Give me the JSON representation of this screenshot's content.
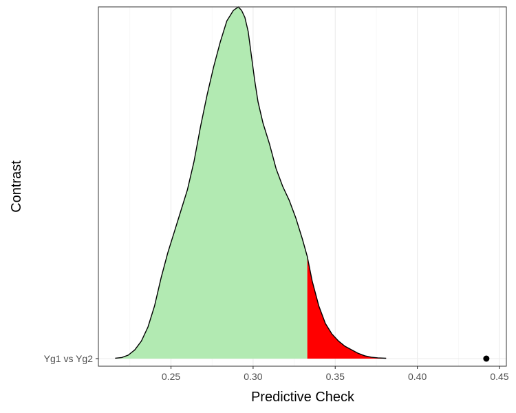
{
  "chart_data": {
    "type": "density",
    "xlabel": "Predictive Check",
    "ylabel": "Contrast",
    "xlim": [
      0.2058,
      0.4542
    ],
    "x_ticks": [
      0.25,
      0.3,
      0.35,
      0.4,
      0.45
    ],
    "x_tick_labels": [
      "0.25",
      "0.30",
      "0.35",
      "0.40",
      "0.45"
    ],
    "categories": [
      "Yg1 vs Yg2"
    ],
    "grid": "vertical major and minor",
    "density_curve": {
      "x": [
        0.216,
        0.22,
        0.224,
        0.228,
        0.232,
        0.236,
        0.24,
        0.244,
        0.248,
        0.252,
        0.256,
        0.26,
        0.264,
        0.268,
        0.272,
        0.276,
        0.28,
        0.284,
        0.288,
        0.291,
        0.293,
        0.295,
        0.297,
        0.299,
        0.301,
        0.303,
        0.306,
        0.31,
        0.314,
        0.318,
        0.322,
        0.326,
        0.33,
        0.333,
        0.336,
        0.34,
        0.344,
        0.348,
        0.352,
        0.356,
        0.36,
        0.364,
        0.368,
        0.372,
        0.376,
        0.381
      ],
      "y": [
        0.001,
        0.003,
        0.01,
        0.025,
        0.05,
        0.09,
        0.15,
        0.23,
        0.3,
        0.36,
        0.42,
        0.48,
        0.56,
        0.66,
        0.75,
        0.83,
        0.9,
        0.96,
        0.99,
        1.0,
        0.99,
        0.97,
        0.93,
        0.86,
        0.79,
        0.73,
        0.67,
        0.61,
        0.54,
        0.49,
        0.45,
        0.4,
        0.34,
        0.29,
        0.22,
        0.15,
        0.1,
        0.07,
        0.05,
        0.035,
        0.025,
        0.015,
        0.008,
        0.004,
        0.002,
        0.001
      ]
    },
    "fill_colors": {
      "below_threshold": "#b2eab2",
      "above_threshold": "#ff0000"
    },
    "threshold_x": 0.333,
    "observed_point": {
      "category": "Yg1 vs Yg2",
      "x": 0.442
    }
  }
}
